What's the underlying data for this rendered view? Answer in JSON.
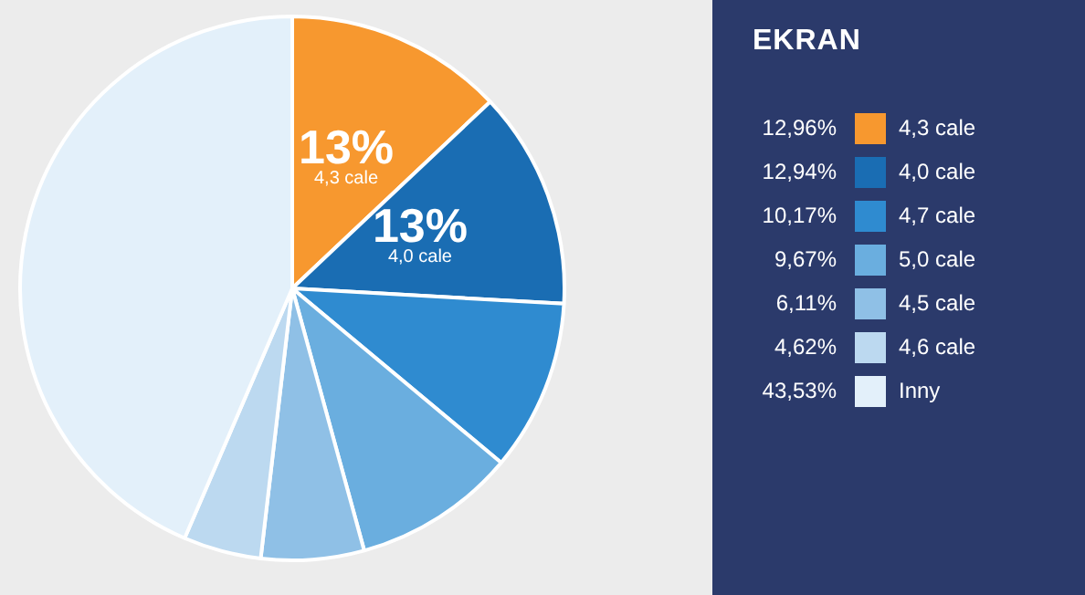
{
  "chart_data": {
    "type": "pie",
    "legend_title": "EKRAN",
    "legend": "right",
    "categories": [
      "4,3 cale",
      "4,0 cale",
      "4,7 cale",
      "5,0 cale",
      "4,5 cale",
      "4,6 cale",
      "Inny"
    ],
    "values": [
      12.96,
      12.94,
      10.17,
      9.67,
      6.11,
      4.62,
      43.53
    ],
    "colors": [
      "#f7982f",
      "#1a6db3",
      "#2f8bd0",
      "#6aaedf",
      "#8fc0e6",
      "#bcd9f0",
      "#e3f0fa"
    ],
    "value_labels": [
      "12,96%",
      "12,94%",
      "10,17%",
      "9,67%",
      "6,11%",
      "4,62%",
      "43,53%"
    ],
    "annotations": [
      {
        "text": "13%",
        "x": "4,3 cale"
      },
      {
        "text": "13%",
        "x": "4,0 cale"
      }
    ]
  }
}
